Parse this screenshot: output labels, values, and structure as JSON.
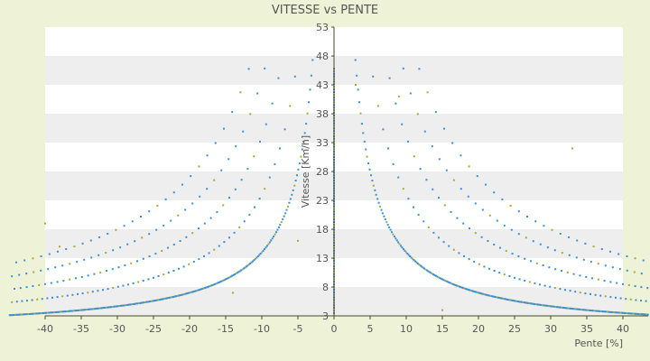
{
  "chart_data": {
    "type": "scatter",
    "title": "VITESSE vs PENTE",
    "xlabel": "Pente [%]",
    "ylabel": "Vitesse [Km/h]",
    "xlim": [
      -40,
      40
    ],
    "ylim": [
      3,
      53
    ],
    "x_ticks": [
      -40,
      -35,
      -30,
      -25,
      -20,
      -15,
      -10,
      -5,
      0,
      5,
      10,
      15,
      20,
      25,
      30,
      35,
      40
    ],
    "y_ticks": [
      3,
      8,
      13,
      18,
      23,
      28,
      33,
      38,
      43,
      48,
      53
    ],
    "grid": "horizontal alternating bands",
    "legend": "none",
    "colors": {
      "series": "#3a8fd8",
      "accent": "#a8a838",
      "band": "#eeeeee",
      "plot_bg": "#ffffff",
      "page_bg": "#eef2d6",
      "axis": "#4a4a2a"
    },
    "curve_family": {
      "description_constants_k": [
        140,
        240,
        340,
        440,
        540
      ],
      "formula": "speed = k / |pente|",
      "dense_series_k": 140
    }
  }
}
